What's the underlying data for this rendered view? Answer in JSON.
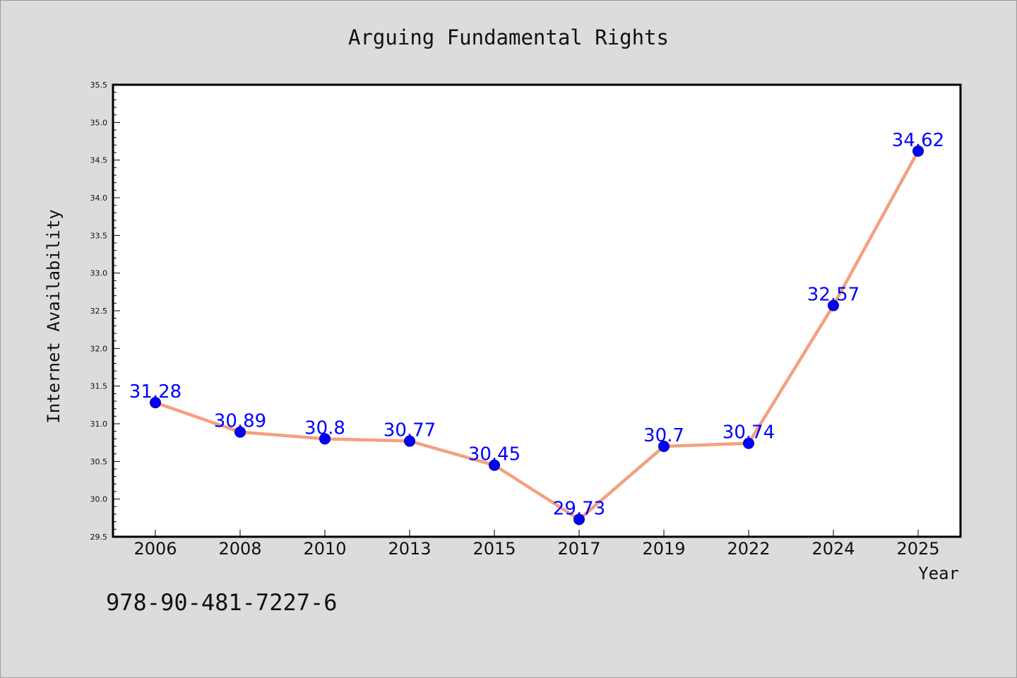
{
  "chart_data": {
    "type": "line",
    "title": "Arguing Fundamental Rights",
    "xlabel": "Year",
    "ylabel": "Internet Availability",
    "categories": [
      "2006",
      "2008",
      "2010",
      "2013",
      "2015",
      "2017",
      "2019",
      "2022",
      "2024",
      "2025"
    ],
    "series": [
      {
        "values": [
          31.28,
          30.89,
          30.8,
          30.77,
          30.45,
          29.73,
          30.7,
          30.74,
          32.57,
          34.62
        ],
        "labels": [
          "31.28",
          "30.89",
          "30.8",
          "30.77",
          "30.45",
          "29.73",
          "30.7",
          "30.74",
          "32.57",
          "34.62"
        ]
      }
    ],
    "ylim": [
      29.5,
      35.5
    ],
    "yticks": [
      "29.5",
      "30.0",
      "30.5",
      "31.0",
      "31.5",
      "32.0",
      "32.5",
      "33.0",
      "33.5",
      "34.0",
      "34.5",
      "35.0",
      "35.5"
    ],
    "grid": false,
    "legend": "none",
    "colors": {
      "line": "#f4a07f",
      "marker": "#0000ff",
      "label": "#0000ff",
      "background": "#dcdcdc",
      "plot_background": "#ffffff"
    }
  },
  "footer": {
    "isbn": "978-90-481-7227-6"
  }
}
